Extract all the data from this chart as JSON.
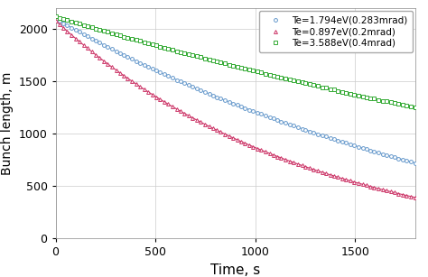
{
  "title": "",
  "xlabel": "Time, s",
  "ylabel": "Bunch length, m",
  "xlim": [
    0,
    1800
  ],
  "ylim": [
    0,
    2200
  ],
  "xticks": [
    0,
    500,
    1000,
    1500
  ],
  "yticks": [
    0,
    500,
    1000,
    1500,
    2000
  ],
  "series": [
    {
      "label": "Te=1.794eV(0.283mrad)",
      "color": "#6699cc",
      "marker": "o",
      "y0": 2100,
      "y_end": 720,
      "decay": 0.00042
    },
    {
      "label": "Te=0.897eV(0.2mrad)",
      "color": "#cc3366",
      "marker": "^",
      "y0": 2080,
      "y_end": 390,
      "decay": 0.00078
    },
    {
      "label": "Te=3.588eV(0.4mrad)",
      "color": "#33aa33",
      "marker": "s",
      "y0": 2120,
      "y_end": 1250,
      "decay": 0.0002
    }
  ],
  "legend_loc": "upper right",
  "grid": true,
  "background_color": "#ffffff",
  "xlabel_fontsize": 11,
  "ylabel_fontsize": 10,
  "tick_fontsize": 9,
  "legend_fontsize": 7.5,
  "n_markers": 90,
  "marker_size": 2.8,
  "line_width": 0.8
}
